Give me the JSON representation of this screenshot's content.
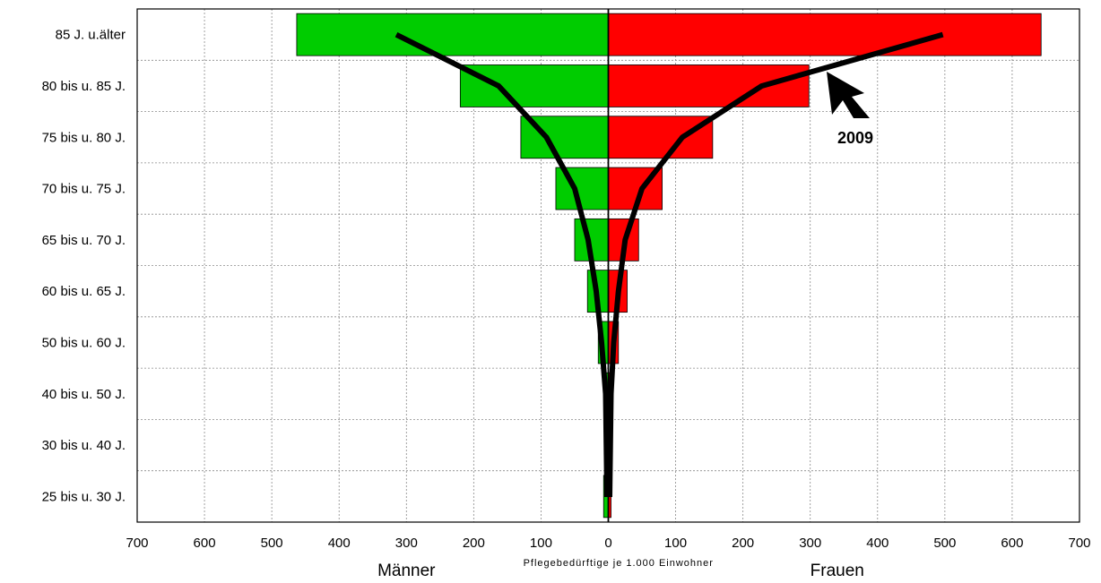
{
  "chart_data": {
    "type": "bar",
    "orientation": "horizontal-pyramid",
    "categories": [
      "85 J. u.älter",
      "80 bis u. 85 J.",
      "75 bis u. 80 J.",
      "70 bis u. 75 J.",
      "65 bis u. 70 J.",
      "60 bis u. 65 J.",
      "50 bis u. 60 J.",
      "40 bis u. 50 J.",
      "30 bis u. 40 J.",
      "25 bis u. 30 J."
    ],
    "xlabel": "Pflegebedürftige je 1.000 Einwohner",
    "left_label": "Männer",
    "right_label": "Frauen",
    "xlim": [
      -700,
      700
    ],
    "x_ticks": [
      -700,
      -600,
      -500,
      -400,
      -300,
      -200,
      -100,
      0,
      100,
      200,
      300,
      400,
      500,
      600,
      700
    ],
    "x_tick_labels": [
      "700",
      "600",
      "500",
      "400",
      "300",
      "200",
      "100",
      "0",
      "100",
      "200",
      "300",
      "400",
      "500",
      "600",
      "700"
    ],
    "grid": true,
    "series": [
      {
        "side": "left",
        "color": "#00cc00",
        "values": [
          463,
          220,
          130,
          78,
          50,
          31,
          15,
          6,
          4,
          7
        ]
      },
      {
        "side": "right",
        "color": "#ff0000",
        "values": [
          643,
          298,
          155,
          80,
          45,
          28,
          15,
          6,
          4,
          4
        ]
      }
    ],
    "lines": [
      {
        "label": "2009",
        "color": "#000000",
        "left": [
          315,
          163,
          92,
          50,
          30,
          18,
          10,
          4,
          3,
          2
        ],
        "right": [
          497,
          228,
          110,
          50,
          25,
          15,
          8,
          4,
          3,
          2
        ]
      }
    ],
    "annotation": {
      "text": "2009"
    }
  }
}
